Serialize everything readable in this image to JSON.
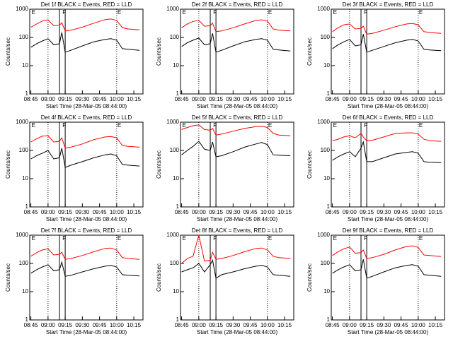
{
  "chart_data": [
    {
      "type": "line",
      "title": "Det 1f BLACK = Events, RED = LLD",
      "xlabel": "Start Time (28-Mar-05 08:44:00)",
      "ylabel": "Counts/sec",
      "log_y": true,
      "xlim": [
        "08:44",
        "10:23"
      ],
      "xticks": [
        "08:45",
        "09:00",
        "09:15",
        "09:30",
        "09:45",
        "10:00",
        "10:15"
      ],
      "ylim": [
        1,
        1000
      ],
      "yticks": [
        1,
        10,
        100,
        1000
      ],
      "annotations": [
        {
          "label": "E",
          "x": "08:45"
        },
        {
          "label": "F",
          "x": "09:12"
        },
        {
          "label": "E",
          "x": "10:00"
        }
      ],
      "vlines": [
        {
          "x": "09:00",
          "style": "dotted"
        },
        {
          "x": "09:10",
          "style": "solid"
        },
        {
          "x": "09:15",
          "style": "solid"
        },
        {
          "x": "10:00",
          "style": "dotted"
        }
      ],
      "x": [
        "08:45",
        "08:50",
        "08:55",
        "09:00",
        "09:05",
        "09:10",
        "09:12",
        "09:15",
        "09:20",
        "09:30",
        "09:40",
        "09:50",
        "09:55",
        "10:00",
        "10:05",
        "10:10",
        "10:20"
      ],
      "series": [
        {
          "name": "BLACK",
          "color": "#000000",
          "values": [
            45,
            60,
            75,
            90,
            55,
            60,
            150,
            30,
            35,
            50,
            70,
            85,
            90,
            80,
            40,
            38,
            35
          ]
        },
        {
          "name": "RED",
          "color": "#ff0000",
          "values": [
            230,
            300,
            380,
            420,
            260,
            270,
            330,
            170,
            180,
            230,
            320,
            430,
            450,
            400,
            220,
            200,
            185
          ]
        }
      ]
    },
    {
      "type": "line",
      "title": "Det 2f BLACK = Events, RED = LLD",
      "xlabel": "Start Time (28-Mar-05 08:44:00)",
      "ylabel": "Counts/sec",
      "log_y": true,
      "xlim": [
        "08:44",
        "10:23"
      ],
      "xticks": [
        "08:45",
        "09:00",
        "09:15",
        "09:30",
        "09:45",
        "10:00",
        "10:15"
      ],
      "ylim": [
        1,
        1000
      ],
      "yticks": [
        1,
        10,
        100,
        1000
      ],
      "annotations": [
        {
          "label": "E",
          "x": "08:45"
        },
        {
          "label": "F",
          "x": "09:12"
        },
        {
          "label": "E",
          "x": "10:00"
        }
      ],
      "vlines": [
        {
          "x": "09:00",
          "style": "dotted"
        },
        {
          "x": "09:10",
          "style": "solid"
        },
        {
          "x": "09:15",
          "style": "solid"
        },
        {
          "x": "10:00",
          "style": "dotted"
        }
      ],
      "x": [
        "08:45",
        "08:50",
        "08:55",
        "09:00",
        "09:05",
        "09:10",
        "09:12",
        "09:15",
        "09:20",
        "09:30",
        "09:40",
        "09:50",
        "09:55",
        "10:00",
        "10:05",
        "10:10",
        "10:20"
      ],
      "series": [
        {
          "name": "BLACK",
          "color": "#000000",
          "values": [
            48,
            65,
            80,
            95,
            55,
            60,
            140,
            30,
            35,
            50,
            70,
            85,
            90,
            80,
            38,
            36,
            33
          ]
        },
        {
          "name": "RED",
          "color": "#ff0000",
          "values": [
            220,
            300,
            370,
            400,
            250,
            260,
            320,
            160,
            170,
            220,
            300,
            400,
            420,
            380,
            200,
            180,
            170
          ]
        }
      ]
    },
    {
      "type": "line",
      "title": "Det 3f BLACK = Events, RED = LLD",
      "xlabel": "Start Time (28-Mar-05 08:44:00)",
      "ylabel": "Counts/sec",
      "log_y": true,
      "xlim": [
        "08:44",
        "10:23"
      ],
      "xticks": [
        "08:45",
        "09:00",
        "09:15",
        "09:30",
        "09:45",
        "10:00",
        "10:15"
      ],
      "ylim": [
        1,
        1000
      ],
      "yticks": [
        1,
        10,
        100,
        1000
      ],
      "annotations": [
        {
          "label": "E",
          "x": "08:45"
        },
        {
          "label": "F",
          "x": "09:12"
        },
        {
          "label": "E",
          "x": "10:00"
        }
      ],
      "vlines": [
        {
          "x": "09:00",
          "style": "dotted"
        },
        {
          "x": "09:10",
          "style": "solid"
        },
        {
          "x": "09:15",
          "style": "solid"
        },
        {
          "x": "10:00",
          "style": "dotted"
        }
      ],
      "x": [
        "08:45",
        "08:50",
        "08:55",
        "09:00",
        "09:05",
        "09:10",
        "09:12",
        "09:15",
        "09:20",
        "09:30",
        "09:40",
        "09:50",
        "09:55",
        "10:00",
        "10:05",
        "10:10",
        "10:20"
      ],
      "series": [
        {
          "name": "BLACK",
          "color": "#000000",
          "values": [
            40,
            55,
            70,
            85,
            50,
            55,
            130,
            30,
            35,
            48,
            65,
            80,
            85,
            75,
            38,
            36,
            34
          ]
        },
        {
          "name": "RED",
          "color": "#ff0000",
          "values": [
            160,
            220,
            280,
            300,
            200,
            210,
            250,
            130,
            140,
            180,
            240,
            300,
            310,
            280,
            160,
            150,
            140
          ]
        }
      ]
    },
    {
      "type": "line",
      "title": "Det 4f BLACK = Events, RED = LLD",
      "xlabel": "Start Time (28-Mar-05 08:44:00)",
      "ylabel": "Counts/sec",
      "log_y": true,
      "xlim": [
        "08:44",
        "10:23"
      ],
      "xticks": [
        "08:45",
        "09:00",
        "09:15",
        "09:30",
        "09:45",
        "10:00",
        "10:15"
      ],
      "ylim": [
        1,
        1000
      ],
      "yticks": [
        1,
        10,
        100,
        1000
      ],
      "annotations": [
        {
          "label": "E",
          "x": "08:45"
        },
        {
          "label": "F",
          "x": "09:12"
        },
        {
          "label": "E",
          "x": "10:00"
        }
      ],
      "vlines": [
        {
          "x": "09:00",
          "style": "dotted"
        },
        {
          "x": "09:10",
          "style": "solid"
        },
        {
          "x": "09:15",
          "style": "solid"
        },
        {
          "x": "10:00",
          "style": "dotted"
        }
      ],
      "x": [
        "08:45",
        "08:50",
        "08:55",
        "09:00",
        "09:05",
        "09:10",
        "09:12",
        "09:15",
        "09:20",
        "09:30",
        "09:40",
        "09:50",
        "09:55",
        "10:00",
        "10:05",
        "10:10",
        "10:20"
      ],
      "series": [
        {
          "name": "BLACK",
          "color": "#000000",
          "values": [
            50,
            65,
            80,
            100,
            50,
            55,
            120,
            25,
            30,
            40,
            55,
            70,
            75,
            65,
            32,
            30,
            28
          ]
        },
        {
          "name": "RED",
          "color": "#ff0000",
          "values": [
            200,
            260,
            320,
            330,
            200,
            210,
            280,
            120,
            130,
            170,
            240,
            300,
            310,
            280,
            150,
            140,
            130
          ]
        }
      ]
    },
    {
      "type": "line",
      "title": "Det 5f BLACK = Events, RED = LLD",
      "xlabel": "Start Time (28-Mar-05 08:44:00)",
      "ylabel": "Counts/sec",
      "log_y": true,
      "xlim": [
        "08:44",
        "10:23"
      ],
      "xticks": [
        "08:45",
        "09:00",
        "09:15",
        "09:30",
        "09:45",
        "10:00",
        "10:15"
      ],
      "ylim": [
        1,
        1000
      ],
      "yticks": [
        1,
        10,
        100,
        1000
      ],
      "annotations": [
        {
          "label": "E",
          "x": "08:45"
        },
        {
          "label": "F",
          "x": "09:12"
        },
        {
          "label": "E",
          "x": "10:00"
        }
      ],
      "vlines": [
        {
          "x": "09:00",
          "style": "dotted"
        },
        {
          "x": "09:10",
          "style": "solid"
        },
        {
          "x": "09:15",
          "style": "solid"
        },
        {
          "x": "10:00",
          "style": "dotted"
        }
      ],
      "x": [
        "08:45",
        "08:50",
        "08:55",
        "09:00",
        "09:05",
        "09:10",
        "09:12",
        "09:15",
        "09:20",
        "09:30",
        "09:40",
        "09:50",
        "09:55",
        "10:00",
        "10:05",
        "10:10",
        "10:20"
      ],
      "series": [
        {
          "name": "BLACK",
          "color": "#000000",
          "values": [
            70,
            100,
            140,
            210,
            110,
            100,
            200,
            60,
            65,
            90,
            130,
            170,
            190,
            160,
            70,
            68,
            65
          ]
        },
        {
          "name": "RED",
          "color": "#ff0000",
          "values": [
            550,
            650,
            750,
            800,
            550,
            520,
            600,
            350,
            380,
            480,
            600,
            700,
            720,
            650,
            400,
            350,
            330
          ]
        }
      ]
    },
    {
      "type": "line",
      "title": "Det 6f BLACK = Events, RED = LLD",
      "xlabel": "Start Time (28-Mar-05 08:44:00)",
      "ylabel": "Counts/sec",
      "log_y": true,
      "xlim": [
        "08:44",
        "10:23"
      ],
      "xticks": [
        "08:45",
        "09:00",
        "09:15",
        "09:30",
        "09:45",
        "10:00",
        "10:15"
      ],
      "ylim": [
        1,
        1000
      ],
      "yticks": [
        1,
        10,
        100,
        1000
      ],
      "annotations": [
        {
          "label": "E",
          "x": "08:45"
        },
        {
          "label": "F",
          "x": "09:12"
        },
        {
          "label": "E",
          "x": "10:00"
        }
      ],
      "vlines": [
        {
          "x": "09:00",
          "style": "dotted"
        },
        {
          "x": "09:10",
          "style": "solid"
        },
        {
          "x": "09:15",
          "style": "solid"
        },
        {
          "x": "10:00",
          "style": "dotted"
        }
      ],
      "x": [
        "08:45",
        "08:50",
        "08:55",
        "09:00",
        "09:05",
        "09:10",
        "09:12",
        "09:15",
        "09:20",
        "09:30",
        "09:40",
        "09:50",
        "09:55",
        "10:00",
        "10:05",
        "10:10",
        "10:20"
      ],
      "series": [
        {
          "name": "BLACK",
          "color": "#000000",
          "values": [
            45,
            60,
            75,
            90,
            60,
            120,
            200,
            40,
            40,
            55,
            75,
            85,
            90,
            80,
            40,
            38,
            37
          ]
        },
        {
          "name": "RED",
          "color": "#ff0000",
          "values": [
            220,
            250,
            300,
            330,
            280,
            400,
            300,
            220,
            230,
            300,
            400,
            420,
            420,
            380,
            250,
            220,
            210
          ]
        }
      ]
    },
    {
      "type": "line",
      "title": "Det 7f BLACK = Events, RED = LLD",
      "xlabel": "Start Time (28-Mar-05 08:44:00)",
      "ylabel": "Counts/sec",
      "log_y": true,
      "xlim": [
        "08:44",
        "10:23"
      ],
      "xticks": [
        "08:45",
        "09:00",
        "09:15",
        "09:30",
        "09:45",
        "10:00",
        "10:15"
      ],
      "ylim": [
        1,
        1000
      ],
      "yticks": [
        1,
        10,
        100,
        1000
      ],
      "annotations": [
        {
          "label": "E",
          "x": "08:45"
        },
        {
          "label": "F",
          "x": "09:12"
        },
        {
          "label": "E",
          "x": "10:00"
        }
      ],
      "vlines": [
        {
          "x": "09:00",
          "style": "dotted"
        },
        {
          "x": "09:10",
          "style": "solid"
        },
        {
          "x": "09:15",
          "style": "solid"
        },
        {
          "x": "10:00",
          "style": "dotted"
        }
      ],
      "x": [
        "08:45",
        "08:50",
        "08:55",
        "09:00",
        "09:05",
        "09:10",
        "09:12",
        "09:15",
        "09:20",
        "09:30",
        "09:40",
        "09:50",
        "09:55",
        "10:00",
        "10:05",
        "10:10",
        "10:20"
      ],
      "series": [
        {
          "name": "BLACK",
          "color": "#000000",
          "values": [
            45,
            60,
            75,
            90,
            55,
            60,
            110,
            35,
            38,
            50,
            65,
            80,
            85,
            75,
            40,
            38,
            36
          ]
        },
        {
          "name": "RED",
          "color": "#ff0000",
          "values": [
            180,
            240,
            300,
            330,
            200,
            210,
            250,
            140,
            150,
            190,
            260,
            340,
            350,
            300,
            160,
            150,
            140
          ]
        }
      ]
    },
    {
      "type": "line",
      "title": "Det 8f BLACK = Events, RED = LLD",
      "xlabel": "Start Time (28-Mar-05 08:44:00)",
      "ylabel": "Counts/sec",
      "log_y": true,
      "xlim": [
        "08:44",
        "10:23"
      ],
      "xticks": [
        "08:45",
        "09:00",
        "09:15",
        "09:30",
        "09:45",
        "10:00",
        "10:15"
      ],
      "ylim": [
        1,
        1000
      ],
      "yticks": [
        1,
        10,
        100,
        1000
      ],
      "annotations": [
        {
          "label": "E",
          "x": "08:45"
        },
        {
          "label": "F",
          "x": "09:12"
        },
        {
          "label": "E",
          "x": "10:00"
        }
      ],
      "vlines": [
        {
          "x": "09:00",
          "style": "dotted"
        },
        {
          "x": "09:10",
          "style": "solid"
        },
        {
          "x": "09:15",
          "style": "solid"
        },
        {
          "x": "10:00",
          "style": "dotted"
        }
      ],
      "x": [
        "08:45",
        "08:50",
        "08:55",
        "09:00",
        "09:05",
        "09:10",
        "09:12",
        "09:15",
        "09:20",
        "09:30",
        "09:40",
        "09:50",
        "09:55",
        "10:00",
        "10:05",
        "10:10",
        "10:20"
      ],
      "series": [
        {
          "name": "BLACK",
          "color": "#000000",
          "values": [
            50,
            60,
            70,
            100,
            50,
            90,
            130,
            30,
            40,
            50,
            65,
            80,
            85,
            75,
            40,
            38,
            35
          ]
        },
        {
          "name": "RED",
          "color": "#ff0000",
          "values": [
            100,
            150,
            180,
            1000,
            120,
            130,
            250,
            140,
            150,
            190,
            260,
            340,
            350,
            300,
            180,
            160,
            150
          ]
        }
      ]
    },
    {
      "type": "line",
      "title": "Det 9f BLACK = Events, RED = LLD",
      "xlabel": "Start Time (28-Mar-05 08:44:00)",
      "ylabel": "Counts/sec",
      "log_y": true,
      "xlim": [
        "08:44",
        "10:23"
      ],
      "xticks": [
        "08:45",
        "09:00",
        "09:15",
        "09:30",
        "09:45",
        "10:00",
        "10:15"
      ],
      "ylim": [
        1,
        1000
      ],
      "yticks": [
        1,
        10,
        100,
        1000
      ],
      "annotations": [
        {
          "label": "E",
          "x": "08:45"
        },
        {
          "label": "F",
          "x": "09:12"
        },
        {
          "label": "E",
          "x": "10:00"
        }
      ],
      "vlines": [
        {
          "x": "09:00",
          "style": "dotted"
        },
        {
          "x": "09:10",
          "style": "solid"
        },
        {
          "x": "09:15",
          "style": "solid"
        },
        {
          "x": "10:00",
          "style": "dotted"
        }
      ],
      "x": [
        "08:45",
        "08:50",
        "08:55",
        "09:00",
        "09:05",
        "09:10",
        "09:12",
        "09:15",
        "09:20",
        "09:30",
        "09:40",
        "09:50",
        "09:55",
        "10:00",
        "10:05",
        "10:10",
        "10:20"
      ],
      "series": [
        {
          "name": "BLACK",
          "color": "#000000",
          "values": [
            45,
            60,
            75,
            90,
            55,
            60,
            140,
            30,
            35,
            50,
            70,
            85,
            90,
            80,
            40,
            38,
            35
          ]
        },
        {
          "name": "RED",
          "color": "#ff0000",
          "values": [
            190,
            260,
            330,
            380,
            230,
            240,
            300,
            150,
            160,
            210,
            300,
            400,
            420,
            370,
            200,
            190,
            175
          ]
        }
      ]
    }
  ]
}
